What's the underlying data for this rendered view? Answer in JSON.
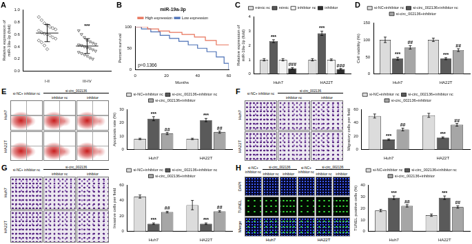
{
  "chart_data": [
    {
      "panel": "A",
      "type": "dot",
      "categories": [
        "I-II",
        "III-IV"
      ],
      "values": [
        [
          0.88,
          0.83,
          0.78,
          0.75,
          0.72,
          0.7,
          0.68,
          0.66,
          0.63,
          0.61,
          0.6,
          0.58,
          0.55,
          0.53,
          0.5,
          0.47,
          0.42,
          0.36
        ],
        [
          0.66,
          0.6,
          0.55,
          0.5,
          0.48,
          0.46,
          0.44,
          0.43,
          0.42,
          0.4,
          0.38,
          0.37,
          0.35,
          0.33,
          0.31,
          0.29,
          0.27,
          0.25,
          0.22,
          0.2
        ]
      ],
      "means": [
        0.62,
        0.41
      ],
      "errors": [
        0.14,
        0.12
      ],
      "marks": [
        null,
        "***"
      ],
      "y_label": "Relative expression of miR-19a-3p (fold)",
      "ylim": [
        0,
        1
      ],
      "yticks": [
        {
          "value": 0,
          "label": "0.0"
        },
        0.2,
        0.4,
        0.6,
        0.8,
        {
          "value": 1,
          "label": "1.0"
        }
      ],
      "grid": false,
      "color": "#555555"
    },
    {
      "panel": "B",
      "type": "line",
      "title": "miR-19a-3p",
      "x_label": "Months",
      "y_label": "Percent survival",
      "annotations": [
        "p=0.1366"
      ],
      "series": [
        {
          "name": "High expression",
          "color": "#e8735a",
          "x": [
            0,
            8,
            15,
            22,
            30,
            38,
            45,
            52,
            60
          ],
          "values": [
            100,
            95,
            90,
            87,
            82,
            76,
            68,
            58,
            58
          ]
        },
        {
          "name": "Low expression",
          "color": "#4a6fb5",
          "x": [
            0,
            4,
            10,
            16,
            22,
            28,
            34,
            40,
            46,
            52,
            57,
            60
          ],
          "values": [
            100,
            95,
            88,
            80,
            73,
            66,
            58,
            50,
            42,
            30,
            15,
            0
          ]
        }
      ],
      "xlim": [
        0,
        60
      ],
      "xticks": [
        0,
        20,
        40,
        60
      ],
      "ylim": [
        0,
        100
      ],
      "yticks": [
        0,
        50,
        100
      ],
      "line_style": "step",
      "legend": "top",
      "grid": false
    },
    {
      "panel": "C",
      "type": "bar",
      "categories": [
        "Huh7",
        "HA22T"
      ],
      "y_label": "Relative expression of miR-19a-3p (fold)",
      "series": [
        {
          "name": "mimic nc",
          "color": "#dcdcdc",
          "values": [
            1.0,
            1.0
          ],
          "errors": [
            0.08,
            0.08
          ]
        },
        {
          "name": "mimic",
          "color": "#5a5a5a",
          "values": [
            2.3,
            2.85
          ],
          "errors": [
            0.1,
            0.15
          ],
          "marks": [
            "***",
            "***"
          ]
        },
        {
          "name": "inhibitor nc",
          "color": "#f4f4f4",
          "values": [
            1.0,
            1.0
          ],
          "errors": [
            0.08,
            0.06
          ]
        },
        {
          "name": "inhibitor",
          "color": "#2e2e2e",
          "values": [
            0.4,
            0.35
          ],
          "errors": [
            0.05,
            0.04
          ],
          "marks": [
            "###",
            "###"
          ]
        }
      ],
      "ylim": [
        0,
        4
      ],
      "yticks": [
        0,
        1,
        2,
        3,
        4
      ],
      "legend": "top",
      "grid": false
    },
    {
      "panel": "D",
      "type": "bar",
      "categories": [
        "Huh7",
        "HA22T"
      ],
      "y_label": "Cell viability (%)",
      "series": [
        {
          "name": "si-NC+inhibitor nc",
          "color": "#dcdcdc",
          "values": [
            100,
            100
          ],
          "errors": [
            8,
            5
          ]
        },
        {
          "name": "si-circ_002136+inhibitor nc",
          "color": "#5a5a5a",
          "values": [
            45,
            45
          ],
          "errors": [
            4,
            3
          ],
          "marks": [
            "***",
            "***"
          ]
        },
        {
          "name": "si-circ_002136+inhibitor",
          "color": "#a6a6a6",
          "values": [
            78,
            70
          ],
          "errors": [
            5,
            4
          ],
          "marks": [
            "##",
            "##"
          ]
        }
      ],
      "ylim": [
        0,
        150
      ],
      "yticks": [
        0,
        50,
        100,
        150
      ],
      "legend": "top",
      "grid": false
    },
    {
      "panel": "E",
      "type": "bar",
      "categories": [
        "Huh7",
        "HA22T"
      ],
      "y_label": "Apoptosis rate (%)",
      "series": [
        {
          "name": "si-NC+inhibitor nc",
          "color": "#dcdcdc",
          "values": [
            8,
            8
          ],
          "errors": [
            0.5,
            0.5
          ]
        },
        {
          "name": "si-circ_002136+inhibitor nc",
          "color": "#5a5a5a",
          "values": [
            23,
            22
          ],
          "errors": [
            1.5,
            1.2
          ],
          "marks": [
            "***",
            "***"
          ]
        },
        {
          "name": "si-circ_002136+inhibitor",
          "color": "#a6a6a6",
          "values": [
            12,
            13
          ],
          "errors": [
            0.8,
            0.8
          ],
          "marks": [
            "##",
            "##"
          ]
        }
      ],
      "ylim": [
        0,
        30
      ],
      "yticks": [
        0,
        10,
        20,
        30
      ],
      "legend": "top",
      "grid": false
    },
    {
      "panel": "F",
      "type": "bar",
      "categories": [
        "Huh7",
        "HA22T"
      ],
      "y_label": "Migratory cells per field",
      "series": [
        {
          "name": "si-NC+inhibitor nc",
          "color": "#dcdcdc",
          "values": [
            50,
            51
          ],
          "errors": [
            3,
            3
          ]
        },
        {
          "name": "si-circ_002136+inhibitor nc",
          "color": "#5a5a5a",
          "values": [
            15,
            18
          ],
          "errors": [
            1,
            1
          ],
          "marks": [
            "***",
            "***"
          ]
        },
        {
          "name": "si-circ_002136+inhibitor",
          "color": "#a6a6a6",
          "values": [
            30,
            37
          ],
          "errors": [
            2,
            2
          ],
          "marks": [
            "##",
            "##"
          ]
        }
      ],
      "ylim": [
        0,
        60
      ],
      "yticks": [
        0,
        20,
        40,
        60
      ],
      "legend": "top",
      "grid": false
    },
    {
      "panel": "G",
      "type": "bar",
      "categories": [
        "Huh7",
        "HA22T"
      ],
      "y_label": "Invasive cells per field",
      "series": [
        {
          "name": "si-NC+inhibitor nc",
          "color": "#dcdcdc",
          "values": [
            45,
            34
          ],
          "errors": [
            2,
            6
          ]
        },
        {
          "name": "si-circ_002136+inhibitor nc",
          "color": "#5a5a5a",
          "values": [
            10,
            10
          ],
          "errors": [
            1,
            1
          ],
          "marks": [
            "***",
            "***"
          ]
        },
        {
          "name": "si-circ_002136+inhibitor",
          "color": "#a6a6a6",
          "values": [
            25,
            26
          ],
          "errors": [
            1,
            1
          ],
          "marks": [
            "##",
            "##"
          ]
        }
      ],
      "ylim": [
        0,
        60
      ],
      "yticks": [
        0,
        20,
        40,
        60
      ],
      "legend": "top",
      "grid": false
    },
    {
      "panel": "H",
      "type": "bar",
      "categories": [
        "Huh7",
        "HA22T"
      ],
      "y_label": "TUNEL positive cells (%)",
      "series": [
        {
          "name": "si-NC+inhibitor nc",
          "color": "#dcdcdc",
          "values": [
            18,
            14
          ],
          "errors": [
            1,
            1
          ]
        },
        {
          "name": "si-circ_002136+inhibitor nc",
          "color": "#5a5a5a",
          "values": [
            29,
            29
          ],
          "errors": [
            1.5,
            1.5
          ],
          "marks": [
            "***",
            "***"
          ]
        },
        {
          "name": "si-circ_002136+inhibitor",
          "color": "#a6a6a6",
          "values": [
            22,
            21
          ],
          "errors": [
            1,
            1
          ],
          "marks": [
            "##",
            "##"
          ]
        }
      ],
      "ylim": [
        0,
        40
      ],
      "yticks": [
        0,
        10,
        20,
        30,
        40
      ],
      "legend": "top",
      "grid": false
    }
  ],
  "image_panels": [
    {
      "panel": "E",
      "column_group": "si-circ_002136",
      "columns": [
        "si-NC+ inhibitor nc",
        "inhibitor nc",
        "inhibitor"
      ],
      "rows": [
        "Huh7",
        "HA22T"
      ]
    },
    {
      "panel": "F",
      "column_group": "si-circ_002136",
      "columns": [
        "si-NC+ inhibitor nc",
        "inhibitor nc",
        "inhibitor"
      ],
      "rows": [
        "Huh7",
        "HA22T"
      ]
    },
    {
      "panel": "G",
      "column_group": "si-circ_002136",
      "columns": [
        "si-NC+ inhibitor nc",
        "inhibitor nc",
        "inhibitor"
      ],
      "rows": [
        "Huh7",
        "HA22T"
      ]
    },
    {
      "panel": "H",
      "column_group": "si-circ_002136",
      "columns": [
        "si-NC+ inhibitor nc",
        "inhibitor nc",
        "inhibitor"
      ],
      "rows": [
        "DAPI",
        "TUNEL",
        "Merge"
      ],
      "groups": [
        "Huh7",
        "HA22T"
      ]
    }
  ]
}
